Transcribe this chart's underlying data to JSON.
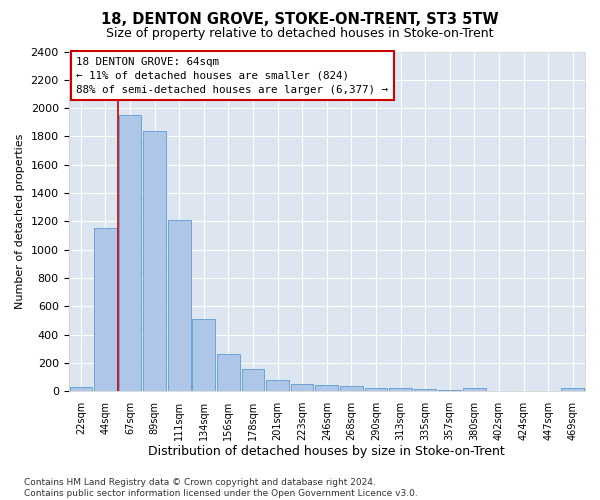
{
  "title": "18, DENTON GROVE, STOKE-ON-TRENT, ST3 5TW",
  "subtitle": "Size of property relative to detached houses in Stoke-on-Trent",
  "xlabel": "Distribution of detached houses by size in Stoke-on-Trent",
  "ylabel": "Number of detached properties",
  "bar_labels": [
    "22sqm",
    "44sqm",
    "67sqm",
    "89sqm",
    "111sqm",
    "134sqm",
    "156sqm",
    "178sqm",
    "201sqm",
    "223sqm",
    "246sqm",
    "268sqm",
    "290sqm",
    "313sqm",
    "335sqm",
    "357sqm",
    "380sqm",
    "402sqm",
    "424sqm",
    "447sqm",
    "469sqm"
  ],
  "bar_values": [
    30,
    1150,
    1950,
    1840,
    1210,
    510,
    265,
    155,
    80,
    50,
    45,
    40,
    20,
    25,
    15,
    10,
    20,
    5,
    5,
    5,
    20
  ],
  "bar_color": "#aec6e8",
  "bar_edge_color": "#5b9bd5",
  "annotation_line1": "18 DENTON GROVE: 64sqm",
  "annotation_line2": "← 11% of detached houses are smaller (824)",
  "annotation_line3": "88% of semi-detached houses are larger (6,377) →",
  "annotation_box_edge": "#cc0000",
  "vline_color": "#cc0000",
  "vline_position": 1.5,
  "ylim": [
    0,
    2400
  ],
  "yticks": [
    0,
    200,
    400,
    600,
    800,
    1000,
    1200,
    1400,
    1600,
    1800,
    2000,
    2200,
    2400
  ],
  "bg_color": "#dde5f0",
  "grid_color": "#ffffff",
  "title_fontsize": 10.5,
  "subtitle_fontsize": 9,
  "xlabel_fontsize": 9,
  "ylabel_fontsize": 8,
  "annotation_fontsize": 7.8,
  "tick_fontsize": 7,
  "ytick_fontsize": 8,
  "footnote": "Contains HM Land Registry data © Crown copyright and database right 2024.\nContains public sector information licensed under the Open Government Licence v3.0.",
  "footnote_fontsize": 6.5
}
